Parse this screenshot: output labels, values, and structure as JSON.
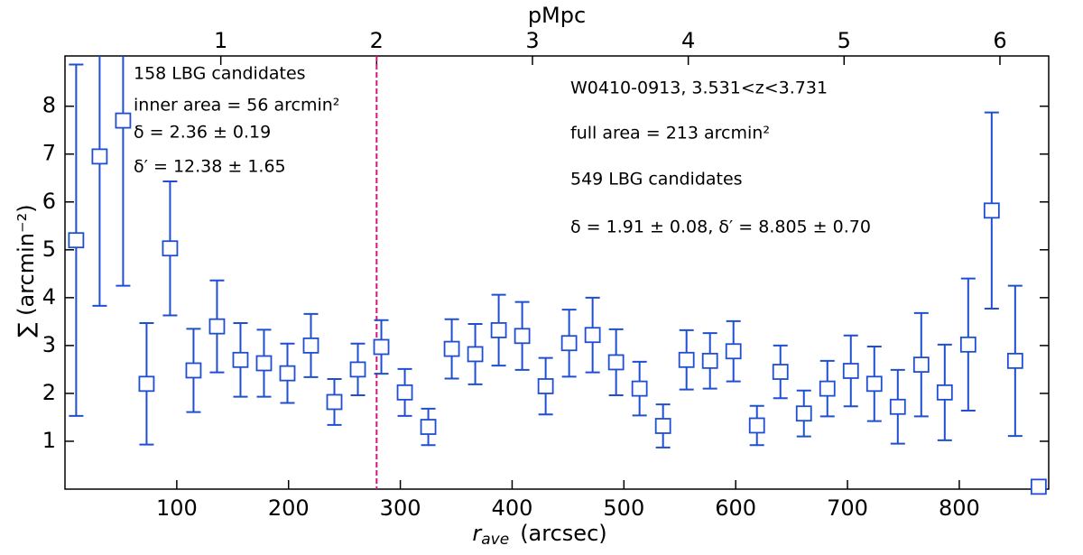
{
  "chart_data": {
    "type": "errorbar",
    "x_label": "r",
    "x_label_sub": "ave",
    "x_label_unit": "(arcsec)",
    "y_label": "∑ (arcmin⁻²)",
    "x2_label": "pMpc",
    "x": [
      10,
      31,
      52,
      73,
      94,
      115,
      136,
      157,
      178,
      199,
      220,
      241,
      262,
      283,
      304,
      325,
      346,
      367,
      388,
      409,
      430,
      451,
      472,
      493,
      514,
      535,
      556,
      577,
      598,
      619,
      640,
      661,
      682,
      703,
      724,
      745,
      766,
      787,
      808,
      829,
      850,
      871
    ],
    "values": [
      5.2,
      6.95,
      7.7,
      2.2,
      5.03,
      2.48,
      3.4,
      2.7,
      2.63,
      2.42,
      3.0,
      1.82,
      2.5,
      2.97,
      2.02,
      1.3,
      2.93,
      2.82,
      3.32,
      3.2,
      2.15,
      3.05,
      3.22,
      2.65,
      2.1,
      1.32,
      2.7,
      2.68,
      2.88,
      1.33,
      2.45,
      1.58,
      2.1,
      2.47,
      2.2,
      1.72,
      2.6,
      2.02,
      3.02,
      5.82,
      2.68,
      0.05
    ],
    "errors": [
      3.67,
      3.12,
      3.45,
      1.27,
      1.4,
      0.87,
      0.96,
      0.77,
      0.7,
      0.62,
      0.66,
      0.48,
      0.54,
      0.56,
      0.49,
      0.38,
      0.62,
      0.63,
      0.74,
      0.71,
      0.59,
      0.7,
      0.78,
      0.69,
      0.56,
      0.45,
      0.62,
      0.58,
      0.63,
      0.41,
      0.55,
      0.48,
      0.58,
      0.74,
      0.78,
      0.77,
      1.08,
      1.0,
      1.38,
      2.05,
      1.57,
      null
    ],
    "color": "#1f4fd0",
    "xlim": [
      0,
      880
    ],
    "xticks": [
      100,
      200,
      300,
      400,
      500,
      600,
      700,
      800
    ],
    "ylim": [
      0,
      9.05
    ],
    "yticks": [
      1,
      2,
      3,
      4,
      5,
      6,
      7,
      8
    ],
    "x2lim": [
      0,
      6.313
    ],
    "x2ticks": [
      1,
      2,
      3,
      4,
      5,
      6
    ],
    "vline_x2": 2,
    "vline_color": "#d6157c",
    "annotations_left": [
      "158  LBG candidates",
      "inner area  =  56 arcmin²",
      "δ = 2.36 ± 0.19",
      "δ′ = 12.38 ± 1.65"
    ],
    "annotations_right": [
      "W0410-0913, 3.531<z<3.731",
      "full area  =  213 arcmin²",
      "549  LBG candidates",
      "δ = 1.91 ± 0.08, δ′ = 8.805 ± 0.70"
    ]
  }
}
